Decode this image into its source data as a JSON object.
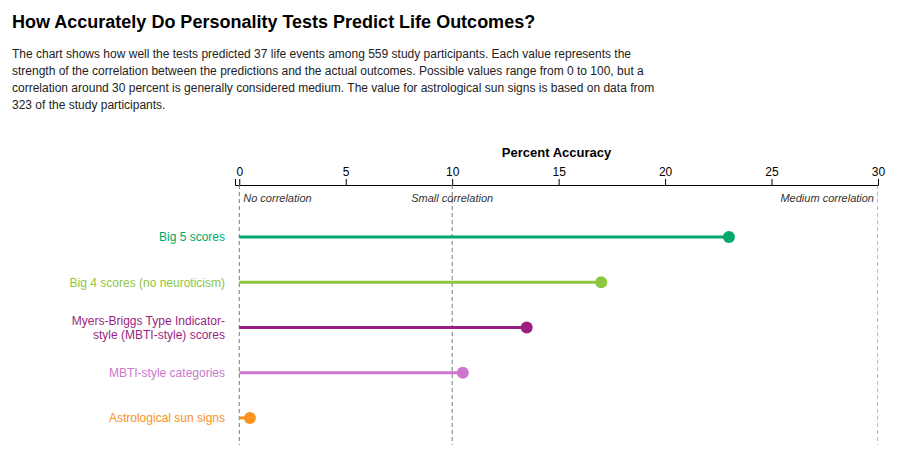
{
  "chart_data": {
    "type": "lollipop",
    "orientation": "horizontal",
    "title": "How Accurately Do Personality Tests Predict Life Outcomes?",
    "subtitle": [
      "The chart shows how well the tests predicted 37 life events among 559 study participants. Each value represents the",
      "strength of the correlation between the predictions and the actual outcomes. Possible values range from 0 to 100, but a",
      "correlation around 30 percent is generally considered medium. The value for astrological sun signs is based on data from",
      "323 of the study participants."
    ],
    "x_label": "Percent Accuracy",
    "xlim": [
      -0.2,
      30
    ],
    "xticks": [
      0,
      5,
      10,
      15,
      20,
      25,
      30
    ],
    "categories": [
      "Big 5 scores",
      "Big 4 scores (no neuroticism)",
      "Myers-Briggs Type Indicator-\nstyle (MBTI-style) scores",
      "MBTI-style categories",
      "Astrological sun signs"
    ],
    "values": [
      23.0,
      17.0,
      13.5,
      10.5,
      0.5
    ],
    "colors": [
      "#00a86b",
      "#8dc63f",
      "#9b1f82",
      "#cc77cc",
      "#f7941d"
    ],
    "annotations": [
      {
        "x": 0,
        "text": "No correlation"
      },
      {
        "x": 10,
        "text": "Small correlation"
      },
      {
        "x": 30,
        "text": "Medium correlation"
      }
    ]
  }
}
